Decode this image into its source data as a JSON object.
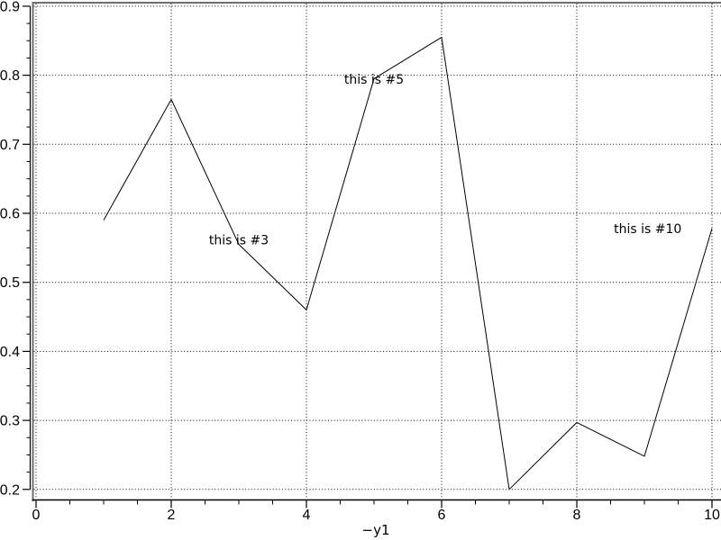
{
  "figure": {
    "background": "#ffffff",
    "caption": "−y1"
  },
  "chart_data": {
    "type": "line",
    "title": "",
    "xlabel": "−y1",
    "ylabel": "",
    "x": [
      1,
      2,
      3,
      4,
      5,
      6,
      7,
      8,
      9,
      10
    ],
    "series": [
      {
        "name": "y1",
        "color": "#000000",
        "values": [
          0.59,
          0.765,
          0.555,
          0.46,
          0.795,
          0.855,
          0.2,
          0.297,
          0.248,
          0.578
        ]
      }
    ],
    "xlim": [
      0,
      10
    ],
    "ylim": [
      0.2,
      0.9
    ],
    "x_major_ticks": [
      0,
      2,
      4,
      6,
      8,
      10
    ],
    "x_tick_labels": [
      "0",
      "2",
      "4",
      "6",
      "8",
      "10"
    ],
    "x_minor_step": 0.5,
    "y_major_ticks": [
      0.2,
      0.3,
      0.4,
      0.5,
      0.6,
      0.7,
      0.8,
      0.9
    ],
    "y_tick_labels": [
      "0.2",
      "0.3",
      "0.4",
      "0.5",
      "0.6",
      "0.7",
      "0.8",
      "0.9"
    ],
    "y_minor_step": 0.025,
    "grid": "dotted-major",
    "legend_position": "bottom-center",
    "annotations": [
      {
        "text": "this is #3",
        "x": 3.0,
        "y": 0.555
      },
      {
        "text": "this is #5",
        "x": 5.0,
        "y": 0.788
      },
      {
        "text": "this is #10",
        "x": 9.05,
        "y": 0.571
      }
    ],
    "colors": {
      "line": "#000000",
      "grid": "#000000",
      "box_border": "#6f6f6f",
      "axis": "#000000",
      "text": "#000000"
    }
  }
}
